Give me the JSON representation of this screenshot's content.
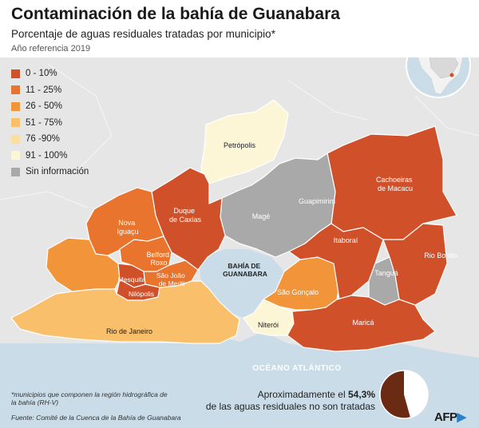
{
  "header": {
    "title": "Contaminación de la bahía de Guanabara",
    "subtitle": "Porcentaje de aguas residuales tratadas por municipio*",
    "year": "Año referencia 2019"
  },
  "legend": [
    {
      "label": "0 - 10%",
      "color": "#d0502a"
    },
    {
      "label": "11 - 25%",
      "color": "#e8742e"
    },
    {
      "label": "26 - 50%",
      "color": "#f2953a"
    },
    {
      "label": "51 - 75%",
      "color": "#f9bf6a"
    },
    {
      "label": "76 -90%",
      "color": "#fcdfa0"
    },
    {
      "label": "91 - 100%",
      "color": "#fdf6d6"
    },
    {
      "label": "Sin información",
      "color": "#a9a9a9"
    }
  ],
  "municipalities": {
    "petropolis": "Petrópolis",
    "cachoeiras": "Cachoeiras de Macacu",
    "duque": "Duque de Caxias",
    "nova_iguacu": "Nova Iguaçu",
    "mage": "Magé",
    "guapimirim": "Guapimirim",
    "belford_roxo": "Belford Roxo",
    "mesquita": "Mesquita",
    "sao_joao": "São João de Meriti",
    "nilopolis": "Nilópolis",
    "itaborai": "Itaboraí",
    "rio_bonito": "Rio Bonito",
    "tangua": "Tanguá",
    "sao_goncalo": "São Gonçalo",
    "niteroi": "Niterói",
    "marica": "Maricá",
    "rio": "Rio de Janeiro"
  },
  "water_labels": {
    "bay": "BAHÍA DE GUANABARA",
    "ocean": "OCÉANO ATLÁNTICO"
  },
  "footer": {
    "note": "*municipios que componen la región hidrográfica de la bahía (RH-V)",
    "source": "Fuente: Comité de la Cuenca de la Bahía de Guanabara"
  },
  "callout": {
    "text_before": "Aproximadamente el ",
    "value": "54,3%",
    "text_after": "de las aguas residuales no son tratadas",
    "untreated_fraction": 0.543
  },
  "logo": {
    "text": "AFP"
  },
  "colors": {
    "water": "#c9dce8",
    "land_outside": "#e6e6e6",
    "border": "#ffffff",
    "pie_untreated": "#6b2a14",
    "pie_treated": "#ffffff"
  }
}
